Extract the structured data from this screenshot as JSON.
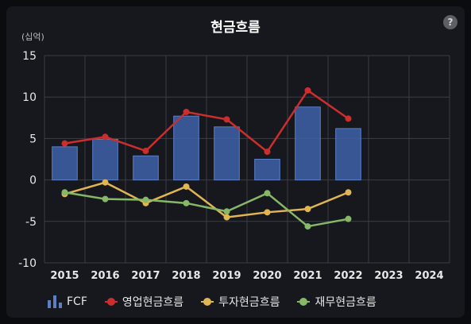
{
  "chart_data": {
    "type": "bar+line",
    "title": "현금흐름",
    "unit_label": "(십억)",
    "categories": [
      "2015",
      "2016",
      "2017",
      "2018",
      "2019",
      "2020",
      "2021",
      "2022",
      "2023",
      "2024"
    ],
    "ylim": [
      -10,
      15
    ],
    "yticks": [
      15,
      10,
      5,
      0,
      -5,
      -10
    ],
    "grid": true,
    "legend_position": "bottom",
    "series": [
      {
        "name": "FCF",
        "kind": "bar",
        "color": "#3e62a8",
        "values": [
          4.0,
          4.9,
          2.9,
          7.7,
          6.4,
          2.5,
          8.8,
          6.2,
          null,
          null
        ]
      },
      {
        "name": "영업현금흐름",
        "kind": "line",
        "color": "#cc2d2d",
        "values": [
          4.4,
          5.2,
          3.5,
          8.2,
          7.3,
          3.4,
          10.8,
          7.4,
          null,
          null
        ]
      },
      {
        "name": "투자현금흐름",
        "kind": "line",
        "color": "#e0b552",
        "values": [
          -1.7,
          -0.3,
          -2.8,
          -0.8,
          -4.5,
          -3.9,
          -3.5,
          -1.5,
          null,
          null
        ]
      },
      {
        "name": "재무현금흐름",
        "kind": "line",
        "color": "#86b868",
        "values": [
          -1.5,
          -2.3,
          -2.4,
          -2.8,
          -3.8,
          -1.6,
          -5.6,
          -4.7,
          null,
          null
        ]
      }
    ]
  },
  "ui": {
    "help_label": "?"
  }
}
